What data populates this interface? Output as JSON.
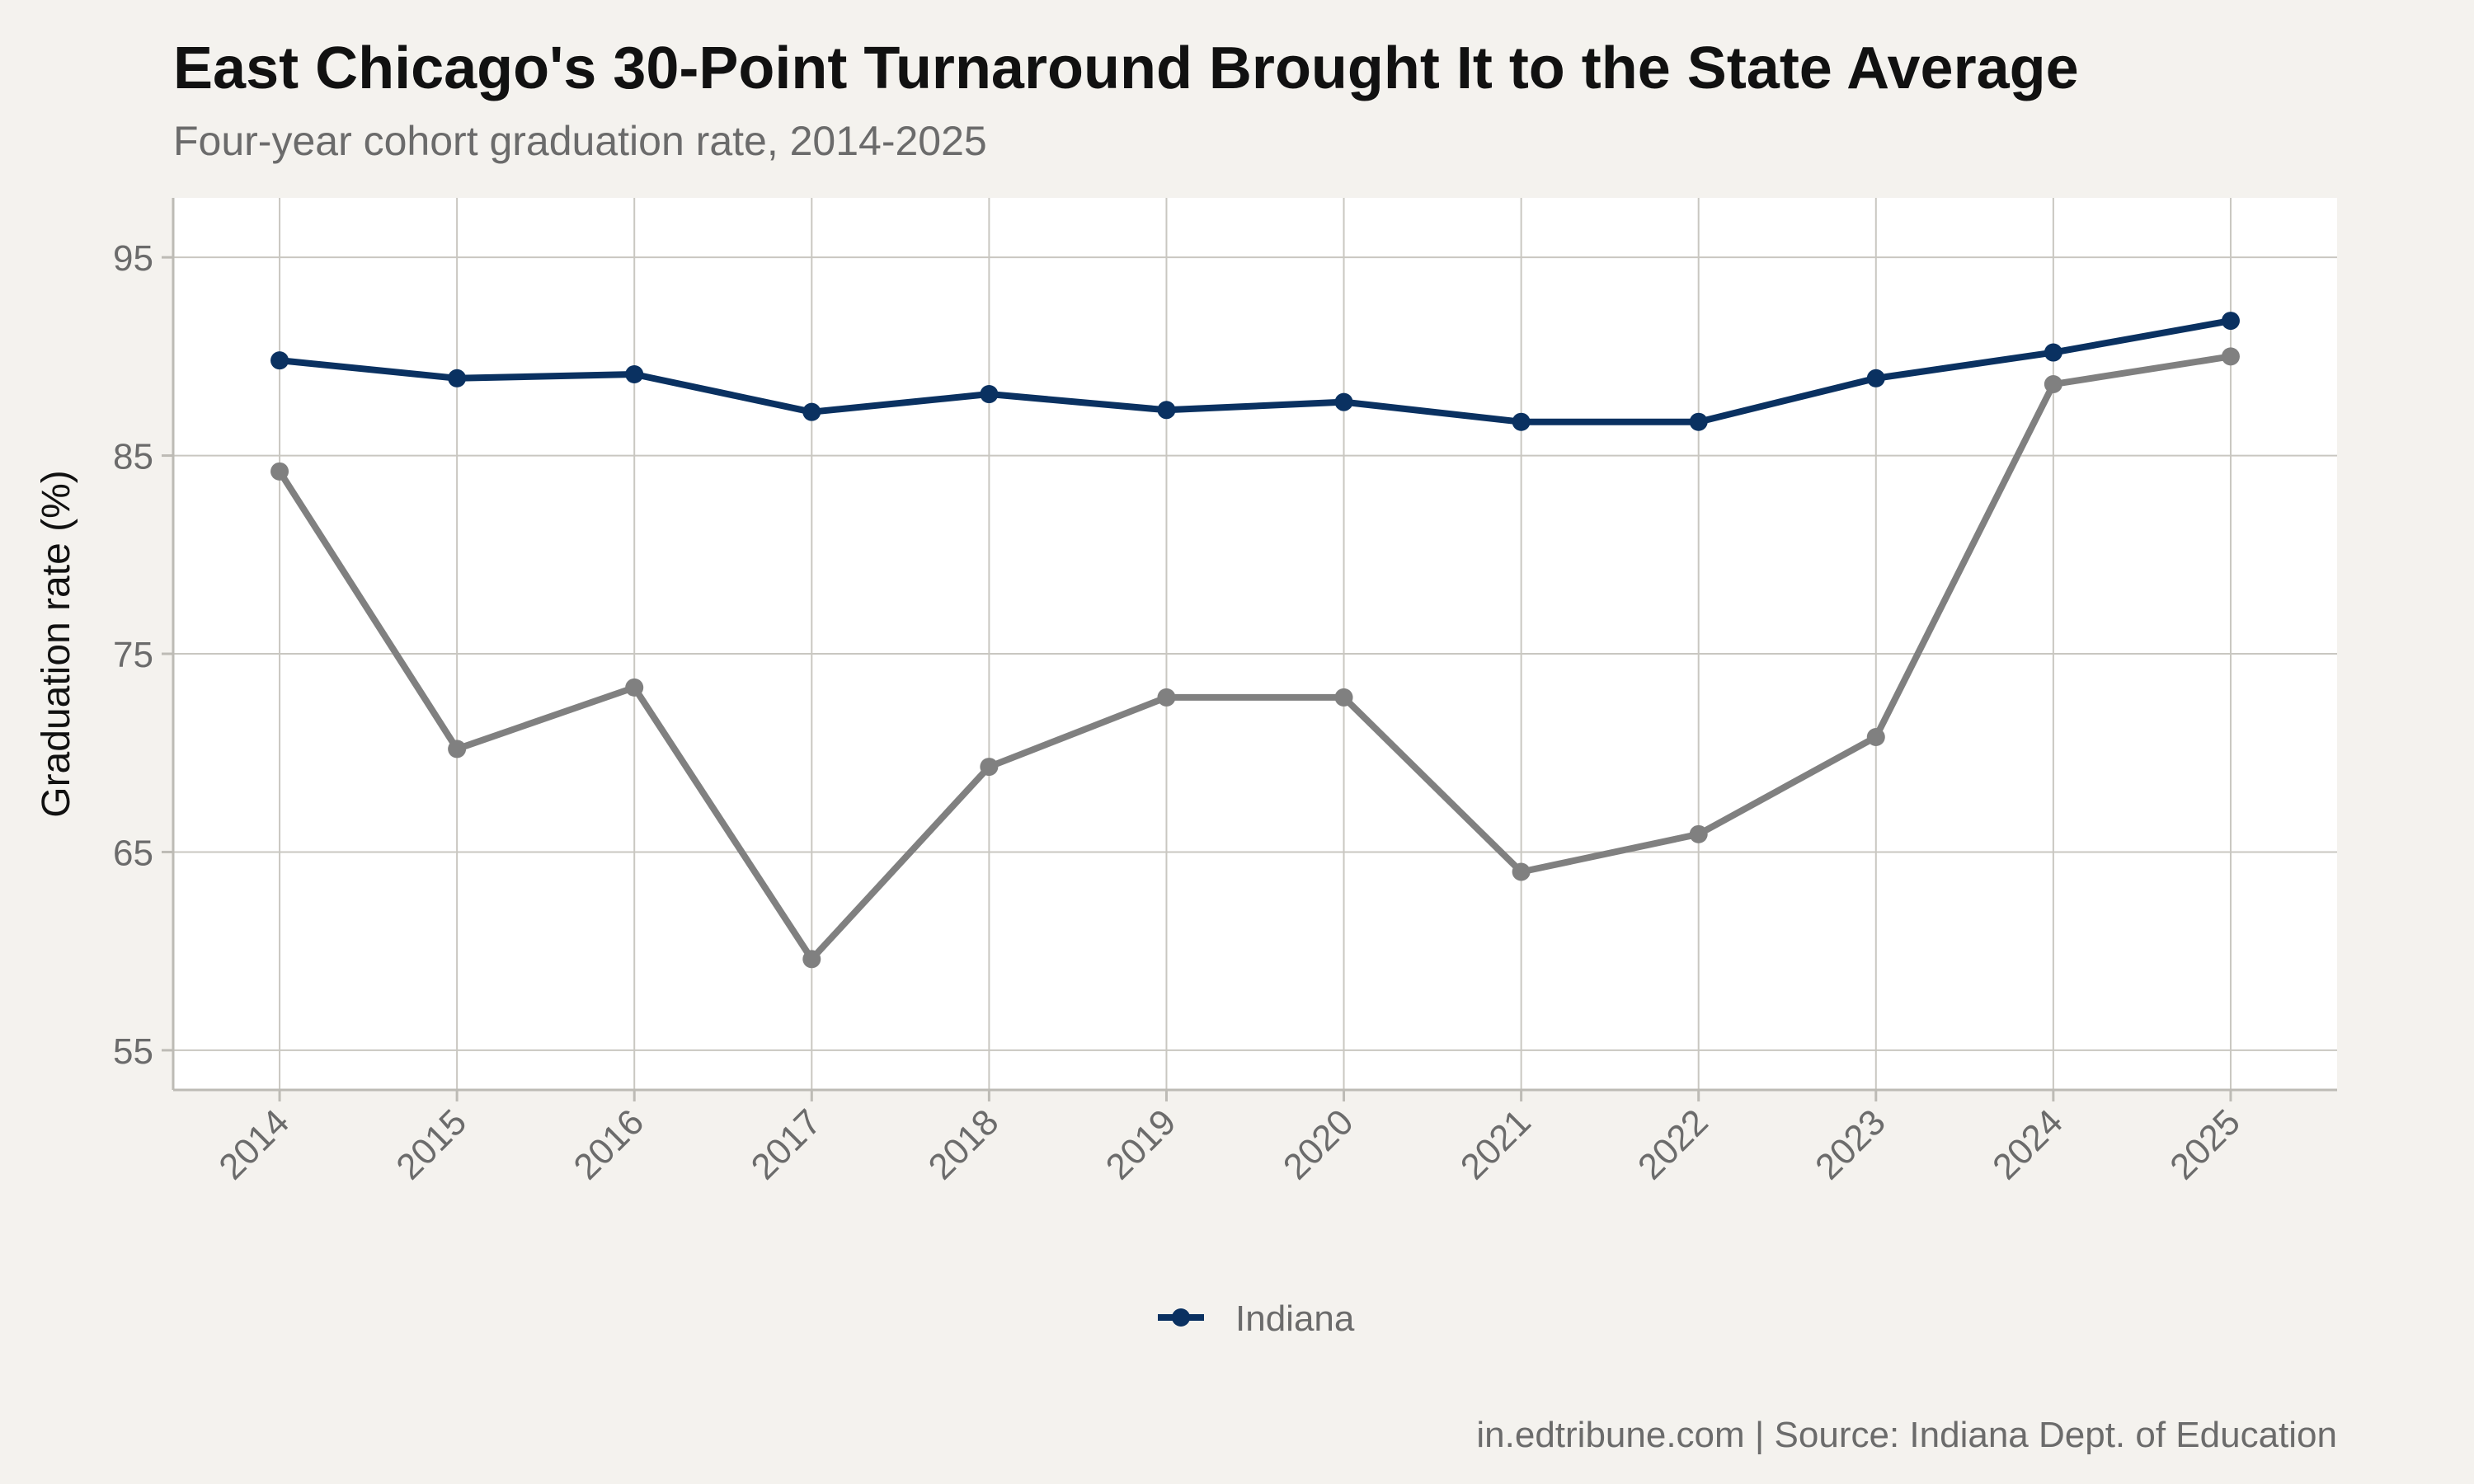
{
  "title": "East Chicago's 30-Point Turnaround Brought It to the State Average",
  "subtitle": "Four-year cohort graduation rate, 2014-2025",
  "caption": "in.edtribune.com | Source: Indiana Dept. of Education",
  "colors": {
    "background": "#f4f2ee",
    "panel": "#ffffff",
    "grid": "#c9c7c1",
    "indiana": "#0a3161",
    "east_chicago": "#808080"
  },
  "chart_data": {
    "type": "line",
    "title": "East Chicago's 30-Point Turnaround Brought It to the State Average",
    "subtitle": "Four-year cohort graduation rate, 2014-2025",
    "xlabel": "",
    "ylabel": "Graduation rate (%)",
    "x": [
      "2014",
      "2015",
      "2016",
      "2017",
      "2018",
      "2019",
      "2020",
      "2021",
      "2022",
      "2023",
      "2024",
      "2025"
    ],
    "yticks": [
      55,
      65,
      75,
      85,
      95
    ],
    "ylim": [
      53,
      98
    ],
    "grid": true,
    "legend_position": "bottom",
    "series": [
      {
        "name": "Indiana",
        "color": "#0a3161",
        "in_legend": true,
        "values": [
          89.8,
          88.9,
          89.1,
          87.2,
          88.1,
          87.3,
          87.7,
          86.7,
          86.7,
          88.9,
          90.2,
          91.8
        ]
      },
      {
        "color": "#808080",
        "in_legend": false,
        "values": [
          84.2,
          70.2,
          73.3,
          59.6,
          69.3,
          72.8,
          72.8,
          64.0,
          65.9,
          70.8,
          88.6,
          90.0
        ]
      }
    ]
  }
}
